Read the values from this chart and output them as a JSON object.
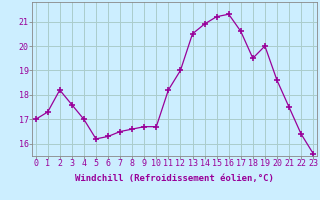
{
  "x": [
    0,
    1,
    2,
    3,
    4,
    5,
    6,
    7,
    8,
    9,
    10,
    11,
    12,
    13,
    14,
    15,
    16,
    17,
    18,
    19,
    20,
    21,
    22,
    23
  ],
  "y": [
    17.0,
    17.3,
    18.2,
    17.6,
    17.0,
    16.2,
    16.3,
    16.5,
    16.6,
    16.7,
    16.7,
    18.2,
    19.0,
    20.5,
    20.9,
    21.2,
    21.3,
    20.6,
    19.5,
    20.0,
    18.6,
    17.5,
    16.4,
    15.6
  ],
  "line_color": "#990099",
  "marker": "+",
  "marker_size": 4,
  "bg_color": "#cceeff",
  "grid_color": "#aacccc",
  "xlabel": "Windchill (Refroidissement éolien,°C)",
  "ylabel": "",
  "yticks": [
    16,
    17,
    18,
    19,
    20,
    21
  ],
  "xticks": [
    0,
    1,
    2,
    3,
    4,
    5,
    6,
    7,
    8,
    9,
    10,
    11,
    12,
    13,
    14,
    15,
    16,
    17,
    18,
    19,
    20,
    21,
    22,
    23
  ],
  "ylim": [
    15.5,
    21.8
  ],
  "xlim": [
    -0.3,
    23.3
  ],
  "label_fontsize": 6.5,
  "tick_fontsize": 6,
  "spine_color": "#888888"
}
